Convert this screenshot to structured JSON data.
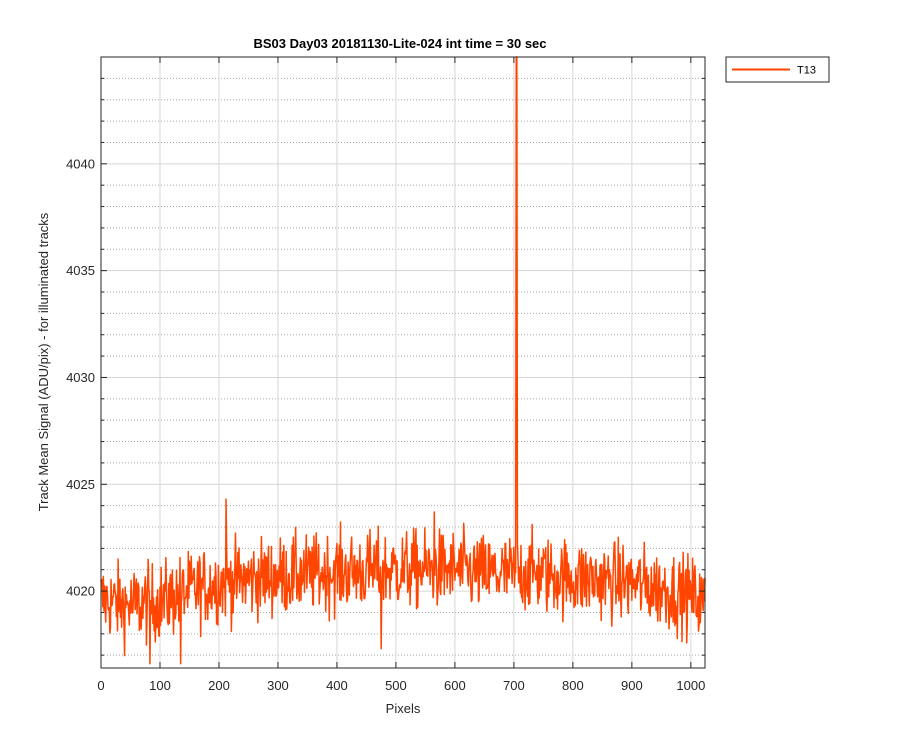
{
  "chart_data": {
    "type": "line",
    "title": "BS03 Day03 20181130-Lite-024 int time = 30 sec",
    "xlabel": "Pixels",
    "ylabel": "Track Mean Signal (ADU/pix) - for illuminated tracks",
    "xlim": [
      0,
      1024
    ],
    "ylim": [
      4016.4,
      4045.0
    ],
    "x_ticks": [
      0,
      100,
      200,
      300,
      400,
      500,
      600,
      700,
      800,
      900,
      1000
    ],
    "y_ticks": [
      4020,
      4025,
      4030,
      4035,
      4040
    ],
    "y_minor_step": 1,
    "grid": "major-solid-minor-dotted",
    "legend_position": "outside-top-right",
    "series": [
      {
        "name": "T13",
        "color": "#ff4500",
        "profile": {
          "x": [
            0,
            50,
            100,
            150,
            200,
            300,
            400,
            500,
            600,
            650,
            700,
            720,
            800,
            900,
            1000,
            1024
          ],
          "y": [
            4019.6,
            4019.3,
            4019.5,
            4020.0,
            4020.4,
            4020.7,
            4020.9,
            4021.0,
            4021.0,
            4020.8,
            4020.8,
            4020.9,
            4020.6,
            4020.4,
            4019.8,
            4019.4
          ]
        },
        "noise_amplitude": 0.9,
        "spikes": [
          {
            "x": 704,
            "y": 4045.0
          },
          {
            "x": 705,
            "y": 4045.0
          },
          {
            "x": 212,
            "y": 4024.3
          },
          {
            "x": 565,
            "y": 4023.7
          },
          {
            "x": 83,
            "y": 4016.6
          },
          {
            "x": 135,
            "y": 4016.6
          },
          {
            "x": 475,
            "y": 4017.3
          }
        ]
      }
    ]
  }
}
